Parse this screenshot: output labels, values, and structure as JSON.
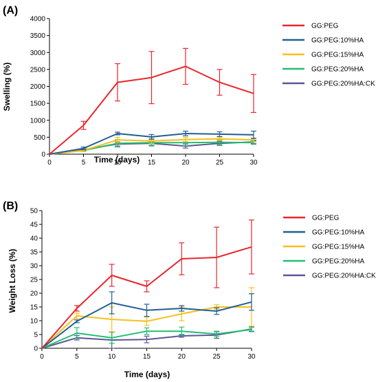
{
  "chart_data": [
    {
      "panel_label": "(A)",
      "type": "line",
      "xlabel": "Time (days)",
      "ylabel": "Swelling (%)",
      "x": [
        0,
        5,
        10,
        15,
        20,
        25,
        30
      ],
      "xticks": [
        0,
        5,
        10,
        15,
        20,
        25,
        30
      ],
      "xlim": [
        0,
        30
      ],
      "yticks": [
        0,
        500,
        1000,
        1500,
        2000,
        2500,
        3000,
        3500,
        4000
      ],
      "ylim": [
        0,
        4000
      ],
      "legend_position": "right",
      "series": [
        {
          "name": "GG:PEG",
          "color": "#e8262b",
          "values": [
            0,
            850,
            2120,
            2260,
            2590,
            2120,
            1790
          ],
          "errors": [
            0,
            120,
            550,
            770,
            530,
            380,
            560
          ]
        },
        {
          "name": "GG:PEG:10%HA",
          "color": "#1f5f96",
          "values": [
            0,
            170,
            610,
            510,
            610,
            590,
            570
          ],
          "errors": [
            0,
            40,
            40,
            70,
            70,
            70,
            110
          ]
        },
        {
          "name": "GG:PEG:15%HA",
          "color": "#f7bf1a",
          "values": [
            0,
            110,
            420,
            390,
            430,
            450,
            420
          ],
          "errors": [
            0,
            30,
            80,
            80,
            60,
            50,
            60
          ]
        },
        {
          "name": "GG:PEG:20%HA",
          "color": "#1fbf72",
          "values": [
            0,
            110,
            320,
            340,
            340,
            350,
            340
          ],
          "errors": [
            0,
            30,
            110,
            100,
            90,
            70,
            50
          ]
        },
        {
          "name": "GG:PEG:20%HA:CK",
          "color": "#5c5494",
          "values": [
            0,
            130,
            300,
            320,
            240,
            320,
            360
          ],
          "errors": [
            0,
            30,
            60,
            60,
            60,
            60,
            50
          ]
        }
      ]
    },
    {
      "panel_label": "(B)",
      "type": "line",
      "xlabel": "Time (days)",
      "ylabel": "Weight Loss (%)",
      "x": [
        0,
        5,
        10,
        15,
        20,
        25,
        30
      ],
      "xticks": [
        0,
        5,
        10,
        15,
        20,
        25,
        30
      ],
      "xlim": [
        0,
        30
      ],
      "yticks": [
        0,
        5,
        10,
        15,
        20,
        25,
        30,
        35,
        40,
        45,
        50
      ],
      "ylim": [
        0,
        50
      ],
      "legend_position": "right",
      "series": [
        {
          "name": "GG:PEG",
          "color": "#e8262b",
          "values": [
            0,
            14.5,
            26.5,
            22.5,
            32.5,
            33.0,
            36.8
          ],
          "errors": [
            0,
            1.0,
            4.0,
            2.0,
            5.8,
            11.0,
            9.8
          ]
        },
        {
          "name": "GG:PEG:10%HA",
          "color": "#1f5f96",
          "values": [
            0,
            9.8,
            16.5,
            13.8,
            14.5,
            13.5,
            16.8
          ],
          "errors": [
            0,
            0.5,
            4.0,
            2.2,
            1.0,
            1.2,
            3.0
          ]
        },
        {
          "name": "GG:PEG:15%HA",
          "color": "#f7bf1a",
          "values": [
            0,
            11.8,
            10.5,
            9.8,
            12.5,
            15.0,
            15.0
          ],
          "errors": [
            0,
            1.0,
            4.5,
            1.5,
            2.5,
            0.8,
            7.0
          ]
        },
        {
          "name": "GG:PEG:20%HA",
          "color": "#1fbf72",
          "values": [
            0,
            5.5,
            3.8,
            6.2,
            6.2,
            5.2,
            6.8
          ],
          "errors": [
            0,
            2.0,
            2.0,
            1.2,
            1.5,
            1.0,
            0.8
          ]
        },
        {
          "name": "GG:PEG:20%HA:CK",
          "color": "#5c5494",
          "values": [
            0,
            3.8,
            3.0,
            3.2,
            4.5,
            4.8,
            7.0
          ],
          "errors": [
            0,
            0.8,
            3.0,
            1.2,
            0.5,
            1.2,
            0.8
          ]
        }
      ]
    }
  ]
}
